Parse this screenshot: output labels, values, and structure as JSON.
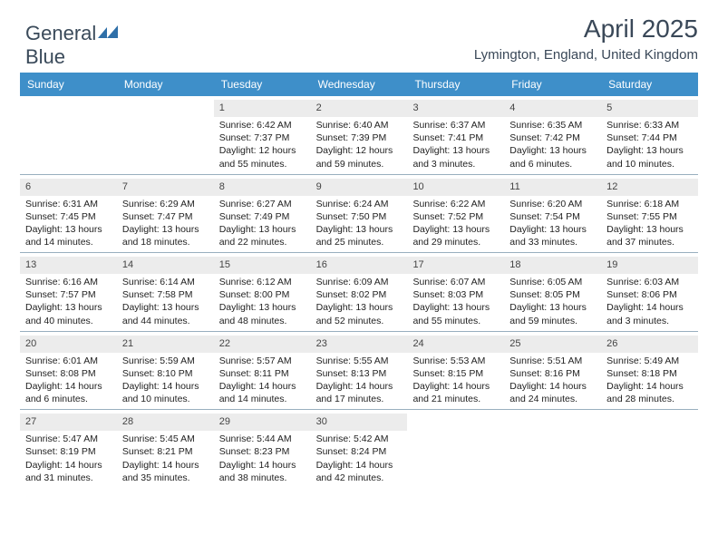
{
  "logo": {
    "part1": "General",
    "part2": "Blue"
  },
  "header": {
    "month": "April 2025",
    "location": "Lymington, England, United Kingdom"
  },
  "colors": {
    "header_bg": "#3e8fc9",
    "header_fg": "#ffffff",
    "daynum_bg": "#ececec",
    "sep": "#33607f",
    "text": "#222222"
  },
  "font": {
    "body_pt": 10.5,
    "header_pt": 12,
    "title_pt": 28
  },
  "weekdays": [
    "Sunday",
    "Monday",
    "Tuesday",
    "Wednesday",
    "Thursday",
    "Friday",
    "Saturday"
  ],
  "weeks": [
    [
      null,
      null,
      {
        "d": "1",
        "sr": "6:42 AM",
        "ss": "7:37 PM",
        "dl": "12 hours and 55 minutes."
      },
      {
        "d": "2",
        "sr": "6:40 AM",
        "ss": "7:39 PM",
        "dl": "12 hours and 59 minutes."
      },
      {
        "d": "3",
        "sr": "6:37 AM",
        "ss": "7:41 PM",
        "dl": "13 hours and 3 minutes."
      },
      {
        "d": "4",
        "sr": "6:35 AM",
        "ss": "7:42 PM",
        "dl": "13 hours and 6 minutes."
      },
      {
        "d": "5",
        "sr": "6:33 AM",
        "ss": "7:44 PM",
        "dl": "13 hours and 10 minutes."
      }
    ],
    [
      {
        "d": "6",
        "sr": "6:31 AM",
        "ss": "7:45 PM",
        "dl": "13 hours and 14 minutes."
      },
      {
        "d": "7",
        "sr": "6:29 AM",
        "ss": "7:47 PM",
        "dl": "13 hours and 18 minutes."
      },
      {
        "d": "8",
        "sr": "6:27 AM",
        "ss": "7:49 PM",
        "dl": "13 hours and 22 minutes."
      },
      {
        "d": "9",
        "sr": "6:24 AM",
        "ss": "7:50 PM",
        "dl": "13 hours and 25 minutes."
      },
      {
        "d": "10",
        "sr": "6:22 AM",
        "ss": "7:52 PM",
        "dl": "13 hours and 29 minutes."
      },
      {
        "d": "11",
        "sr": "6:20 AM",
        "ss": "7:54 PM",
        "dl": "13 hours and 33 minutes."
      },
      {
        "d": "12",
        "sr": "6:18 AM",
        "ss": "7:55 PM",
        "dl": "13 hours and 37 minutes."
      }
    ],
    [
      {
        "d": "13",
        "sr": "6:16 AM",
        "ss": "7:57 PM",
        "dl": "13 hours and 40 minutes."
      },
      {
        "d": "14",
        "sr": "6:14 AM",
        "ss": "7:58 PM",
        "dl": "13 hours and 44 minutes."
      },
      {
        "d": "15",
        "sr": "6:12 AM",
        "ss": "8:00 PM",
        "dl": "13 hours and 48 minutes."
      },
      {
        "d": "16",
        "sr": "6:09 AM",
        "ss": "8:02 PM",
        "dl": "13 hours and 52 minutes."
      },
      {
        "d": "17",
        "sr": "6:07 AM",
        "ss": "8:03 PM",
        "dl": "13 hours and 55 minutes."
      },
      {
        "d": "18",
        "sr": "6:05 AM",
        "ss": "8:05 PM",
        "dl": "13 hours and 59 minutes."
      },
      {
        "d": "19",
        "sr": "6:03 AM",
        "ss": "8:06 PM",
        "dl": "14 hours and 3 minutes."
      }
    ],
    [
      {
        "d": "20",
        "sr": "6:01 AM",
        "ss": "8:08 PM",
        "dl": "14 hours and 6 minutes."
      },
      {
        "d": "21",
        "sr": "5:59 AM",
        "ss": "8:10 PM",
        "dl": "14 hours and 10 minutes."
      },
      {
        "d": "22",
        "sr": "5:57 AM",
        "ss": "8:11 PM",
        "dl": "14 hours and 14 minutes."
      },
      {
        "d": "23",
        "sr": "5:55 AM",
        "ss": "8:13 PM",
        "dl": "14 hours and 17 minutes."
      },
      {
        "d": "24",
        "sr": "5:53 AM",
        "ss": "8:15 PM",
        "dl": "14 hours and 21 minutes."
      },
      {
        "d": "25",
        "sr": "5:51 AM",
        "ss": "8:16 PM",
        "dl": "14 hours and 24 minutes."
      },
      {
        "d": "26",
        "sr": "5:49 AM",
        "ss": "8:18 PM",
        "dl": "14 hours and 28 minutes."
      }
    ],
    [
      {
        "d": "27",
        "sr": "5:47 AM",
        "ss": "8:19 PM",
        "dl": "14 hours and 31 minutes."
      },
      {
        "d": "28",
        "sr": "5:45 AM",
        "ss": "8:21 PM",
        "dl": "14 hours and 35 minutes."
      },
      {
        "d": "29",
        "sr": "5:44 AM",
        "ss": "8:23 PM",
        "dl": "14 hours and 38 minutes."
      },
      {
        "d": "30",
        "sr": "5:42 AM",
        "ss": "8:24 PM",
        "dl": "14 hours and 42 minutes."
      },
      null,
      null,
      null
    ]
  ],
  "labels": {
    "sunrise": "Sunrise:",
    "sunset": "Sunset:",
    "daylight": "Daylight:"
  }
}
